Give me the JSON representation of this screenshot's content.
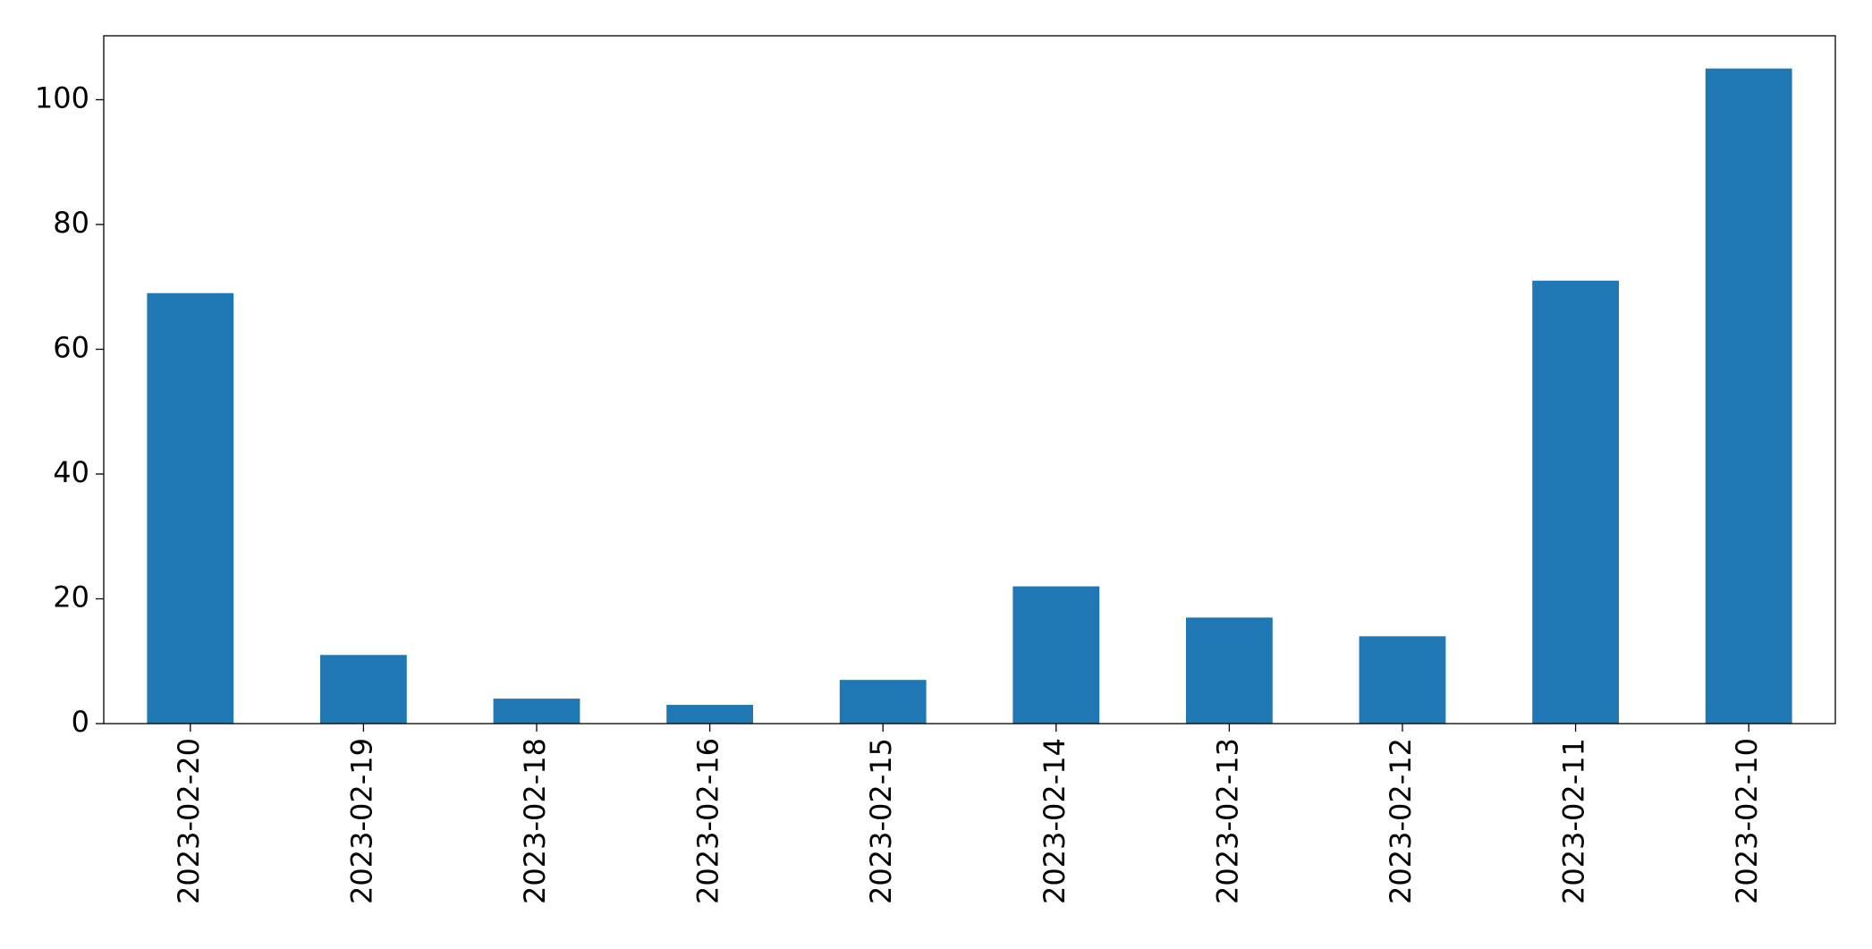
{
  "chart_data": {
    "type": "bar",
    "categories": [
      "2023-02-20",
      "2023-02-19",
      "2023-02-18",
      "2023-02-16",
      "2023-02-15",
      "2023-02-14",
      "2023-02-13",
      "2023-02-12",
      "2023-02-11",
      "2023-02-10"
    ],
    "values": [
      69,
      11,
      4,
      3,
      7,
      22,
      17,
      14,
      71,
      105
    ],
    "color": "#1f77b4",
    "ylim": [
      0,
      110.25
    ],
    "yticks": [
      0,
      20,
      40,
      60,
      80,
      100
    ],
    "grid": false
  }
}
